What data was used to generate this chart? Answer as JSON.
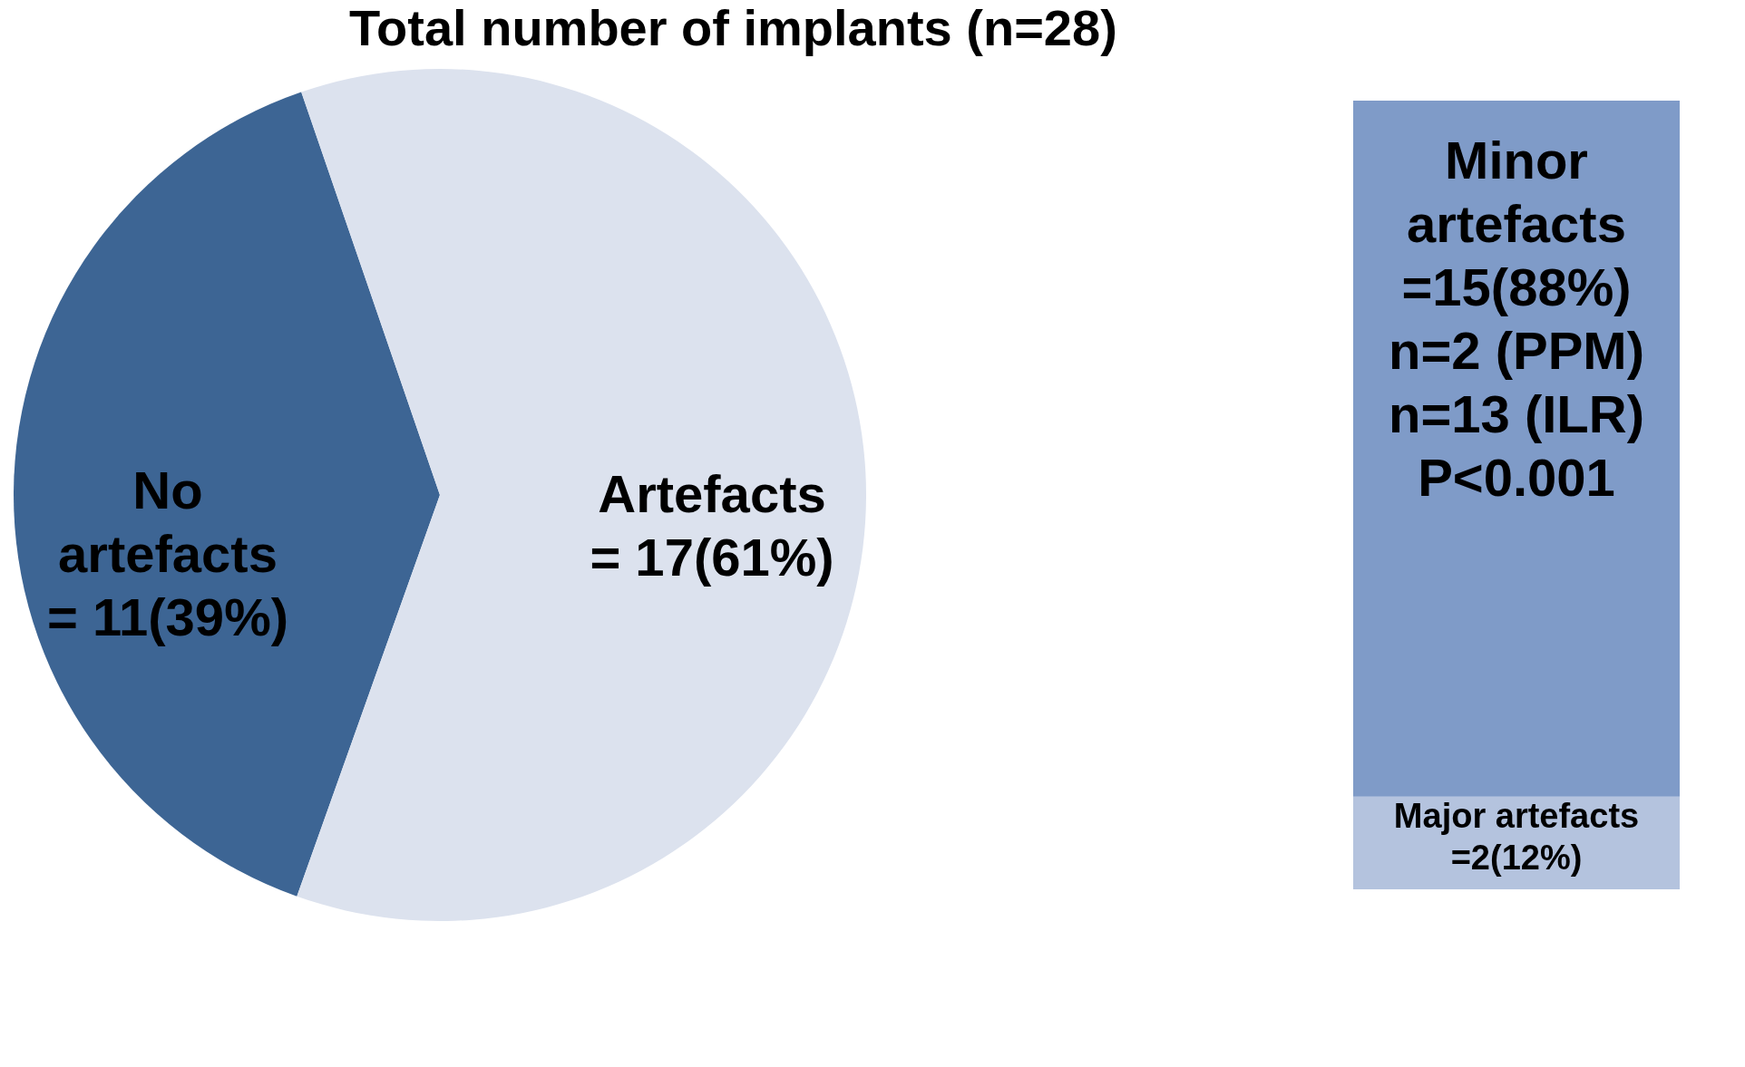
{
  "chart_data": [
    {
      "type": "pie",
      "title": "Total number of implants (n=28)",
      "categories": [
        "No artefacts",
        "Artefacts"
      ],
      "values": [
        11,
        17
      ],
      "colors": [
        "#3d6594",
        "#dce2ee"
      ],
      "value_labels": [
        "= 11(39%)",
        "= 17(61%)"
      ]
    },
    {
      "type": "bar",
      "stacked": true,
      "categories": [
        null
      ],
      "series": [
        {
          "name": "Major artefacts",
          "color": "#b4c3de",
          "values": [
            2
          ],
          "value_labels": [
            "=2(12%)"
          ]
        },
        {
          "name": "Minor artefacts",
          "color": "#7f9bc8",
          "values": [
            15
          ],
          "value_labels": [
            "=15(88%)\nn=2 (PPM)\nn=13 (ILR)\nP<0.001"
          ]
        }
      ]
    }
  ]
}
